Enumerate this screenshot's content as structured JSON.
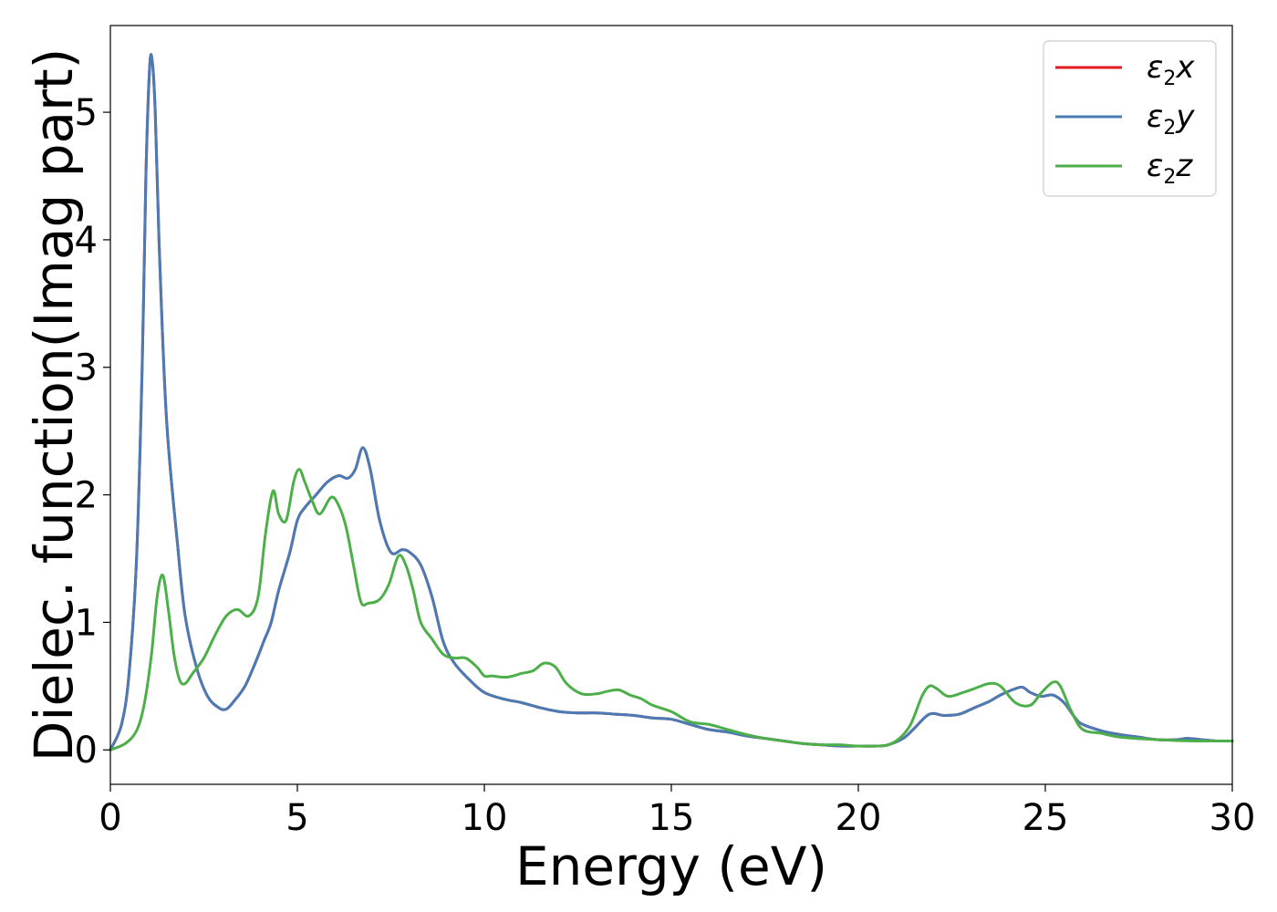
{
  "chart_data": {
    "type": "line",
    "xlabel": "Energy (eV)",
    "ylabel": "Dielec. function(Imag part)",
    "xlim": [
      0,
      30
    ],
    "ylim": [
      -0.27,
      5.68
    ],
    "xticks": [
      "0",
      "5",
      "10",
      "15",
      "20",
      "25",
      "30"
    ],
    "yticks": [
      "0",
      "1",
      "2",
      "3",
      "4",
      "5"
    ],
    "grid": false,
    "legend_position": "top-right",
    "series": [
      {
        "name": "ε2x",
        "legend_base": "ε",
        "legend_sub": "2",
        "legend_suffix": "x",
        "color": "#e41a1c",
        "x": [
          0,
          0.3,
          0.5,
          0.7,
          0.85,
          0.95,
          1.05,
          1.12,
          1.2,
          1.3,
          1.5,
          1.8,
          2.0,
          2.3,
          2.6,
          2.9,
          3.1,
          3.3,
          3.6,
          3.9,
          4.1,
          4.3,
          4.5,
          4.8,
          5.0,
          5.2,
          5.5,
          5.8,
          6.1,
          6.35,
          6.55,
          6.75,
          6.95,
          7.2,
          7.5,
          7.8,
          8.0,
          8.3,
          8.6,
          8.9,
          9.2,
          9.6,
          10.0,
          10.5,
          11.0,
          11.5,
          12.0,
          12.5,
          13.0,
          13.5,
          14.0,
          14.5,
          15.0,
          15.5,
          16.0,
          16.5,
          17.0,
          17.5,
          18.0,
          18.5,
          19.0,
          19.5,
          20.0,
          20.5,
          20.8,
          21.2,
          21.5,
          21.9,
          22.3,
          22.7,
          23.1,
          23.5,
          23.8,
          24.2,
          24.4,
          24.6,
          24.9,
          25.2,
          25.5,
          25.8,
          26.0,
          26.5,
          27.0,
          27.5,
          28.0,
          28.5,
          28.8,
          29.2,
          29.6,
          30
        ],
        "y": [
          0,
          0.2,
          0.6,
          1.5,
          3.0,
          4.5,
          5.35,
          5.4,
          5.0,
          4.0,
          2.6,
          1.6,
          1.05,
          0.65,
          0.42,
          0.33,
          0.32,
          0.38,
          0.5,
          0.7,
          0.85,
          1.0,
          1.25,
          1.55,
          1.8,
          1.9,
          2.0,
          2.1,
          2.15,
          2.13,
          2.2,
          2.37,
          2.2,
          1.8,
          1.55,
          1.57,
          1.55,
          1.45,
          1.2,
          0.85,
          0.68,
          0.55,
          0.45,
          0.4,
          0.37,
          0.33,
          0.3,
          0.29,
          0.29,
          0.28,
          0.27,
          0.25,
          0.24,
          0.2,
          0.16,
          0.14,
          0.11,
          0.09,
          0.07,
          0.05,
          0.04,
          0.03,
          0.03,
          0.03,
          0.04,
          0.09,
          0.17,
          0.28,
          0.27,
          0.28,
          0.33,
          0.38,
          0.43,
          0.48,
          0.49,
          0.45,
          0.42,
          0.43,
          0.37,
          0.25,
          0.2,
          0.15,
          0.12,
          0.1,
          0.08,
          0.08,
          0.09,
          0.08,
          0.07,
          0.07
        ]
      },
      {
        "name": "ε2y",
        "legend_base": "ε",
        "legend_sub": "2",
        "legend_suffix": "y",
        "color": "#4a7bb5",
        "x": [
          0,
          0.3,
          0.5,
          0.7,
          0.85,
          0.95,
          1.05,
          1.12,
          1.2,
          1.3,
          1.5,
          1.8,
          2.0,
          2.3,
          2.6,
          2.9,
          3.1,
          3.3,
          3.6,
          3.9,
          4.1,
          4.3,
          4.5,
          4.8,
          5.0,
          5.2,
          5.5,
          5.8,
          6.1,
          6.35,
          6.55,
          6.75,
          6.95,
          7.2,
          7.5,
          7.8,
          8.0,
          8.3,
          8.6,
          8.9,
          9.2,
          9.6,
          10.0,
          10.5,
          11.0,
          11.5,
          12.0,
          12.5,
          13.0,
          13.5,
          14.0,
          14.5,
          15.0,
          15.5,
          16.0,
          16.5,
          17.0,
          17.5,
          18.0,
          18.5,
          19.0,
          19.5,
          20.0,
          20.5,
          20.8,
          21.2,
          21.5,
          21.9,
          22.3,
          22.7,
          23.1,
          23.5,
          23.8,
          24.2,
          24.4,
          24.6,
          24.9,
          25.2,
          25.5,
          25.8,
          26.0,
          26.5,
          27.0,
          27.5,
          28.0,
          28.5,
          28.8,
          29.2,
          29.6,
          30
        ],
        "y": [
          0,
          0.2,
          0.6,
          1.5,
          3.0,
          4.5,
          5.35,
          5.4,
          5.0,
          4.0,
          2.6,
          1.6,
          1.05,
          0.65,
          0.42,
          0.33,
          0.32,
          0.38,
          0.5,
          0.7,
          0.85,
          1.0,
          1.25,
          1.55,
          1.8,
          1.9,
          2.0,
          2.1,
          2.15,
          2.13,
          2.2,
          2.37,
          2.2,
          1.8,
          1.55,
          1.57,
          1.55,
          1.45,
          1.2,
          0.85,
          0.68,
          0.55,
          0.45,
          0.4,
          0.37,
          0.33,
          0.3,
          0.29,
          0.29,
          0.28,
          0.27,
          0.25,
          0.24,
          0.2,
          0.16,
          0.14,
          0.11,
          0.09,
          0.07,
          0.05,
          0.04,
          0.03,
          0.03,
          0.03,
          0.04,
          0.09,
          0.17,
          0.28,
          0.27,
          0.28,
          0.33,
          0.38,
          0.43,
          0.48,
          0.49,
          0.45,
          0.42,
          0.43,
          0.37,
          0.25,
          0.2,
          0.15,
          0.12,
          0.1,
          0.08,
          0.08,
          0.09,
          0.08,
          0.07,
          0.07
        ]
      },
      {
        "name": "ε2z",
        "legend_base": "ε",
        "legend_sub": "2",
        "legend_suffix": "z",
        "color": "#4daf4a",
        "x": [
          0,
          0.4,
          0.7,
          0.9,
          1.1,
          1.25,
          1.4,
          1.55,
          1.7,
          1.85,
          2.0,
          2.2,
          2.5,
          2.8,
          3.1,
          3.4,
          3.7,
          3.95,
          4.15,
          4.35,
          4.5,
          4.7,
          4.9,
          5.05,
          5.2,
          5.4,
          5.6,
          5.9,
          6.1,
          6.3,
          6.5,
          6.7,
          6.9,
          7.2,
          7.45,
          7.7,
          7.9,
          8.1,
          8.3,
          8.6,
          8.9,
          9.2,
          9.5,
          9.8,
          10.0,
          10.2,
          10.6,
          11.0,
          11.3,
          11.6,
          11.9,
          12.2,
          12.6,
          13.0,
          13.3,
          13.6,
          13.9,
          14.2,
          14.5,
          15.0,
          15.5,
          16.0,
          16.5,
          17.0,
          17.5,
          18.0,
          18.5,
          19.0,
          19.5,
          20.0,
          20.5,
          20.8,
          21.1,
          21.4,
          21.7,
          21.9,
          22.1,
          22.4,
          22.8,
          23.1,
          23.5,
          23.8,
          24.2,
          24.6,
          24.9,
          25.2,
          25.4,
          25.7,
          26.0,
          26.5,
          27.0,
          28.0,
          29.0,
          30
        ],
        "y": [
          0,
          0.05,
          0.15,
          0.35,
          0.75,
          1.2,
          1.37,
          1.1,
          0.75,
          0.55,
          0.52,
          0.6,
          0.72,
          0.9,
          1.05,
          1.1,
          1.05,
          1.2,
          1.7,
          2.03,
          1.85,
          1.8,
          2.1,
          2.2,
          2.1,
          1.95,
          1.85,
          1.98,
          1.92,
          1.75,
          1.45,
          1.16,
          1.15,
          1.18,
          1.3,
          1.52,
          1.45,
          1.25,
          1.0,
          0.87,
          0.75,
          0.72,
          0.72,
          0.65,
          0.58,
          0.58,
          0.57,
          0.6,
          0.62,
          0.68,
          0.65,
          0.52,
          0.44,
          0.44,
          0.46,
          0.47,
          0.43,
          0.4,
          0.35,
          0.3,
          0.22,
          0.2,
          0.16,
          0.12,
          0.09,
          0.07,
          0.05,
          0.04,
          0.04,
          0.03,
          0.03,
          0.04,
          0.09,
          0.2,
          0.42,
          0.5,
          0.48,
          0.42,
          0.45,
          0.48,
          0.52,
          0.5,
          0.37,
          0.35,
          0.45,
          0.53,
          0.5,
          0.3,
          0.16,
          0.13,
          0.1,
          0.08,
          0.07,
          0.07
        ]
      }
    ]
  }
}
